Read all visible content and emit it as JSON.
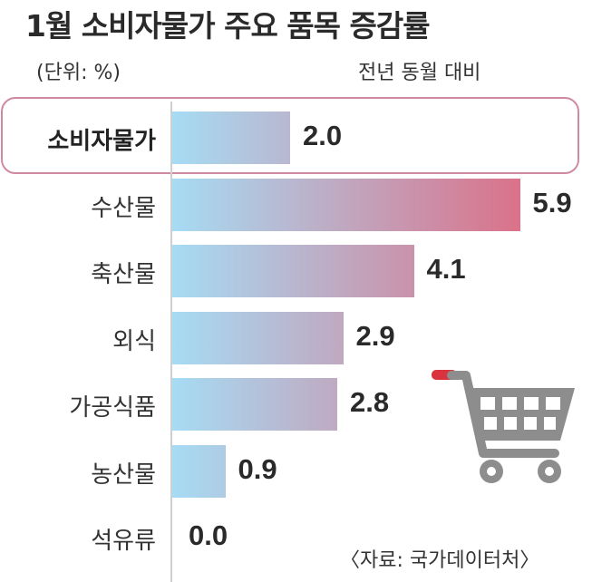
{
  "chart_data": {
    "type": "bar",
    "orientation": "horizontal",
    "title": "1월 소비자물가 주요 품목 증감률",
    "unit_label": "(단위: %)",
    "basis_label": "전년 동월 대비",
    "categories": [
      "소비자물가",
      "수산물",
      "축산물",
      "외식",
      "가공식품",
      "농산물",
      "석유류"
    ],
    "values": [
      2.0,
      5.9,
      4.1,
      2.9,
      2.8,
      0.9,
      0.0
    ],
    "value_labels": [
      "2.0",
      "5.9",
      "4.1",
      "2.9",
      "2.8",
      "0.9",
      "0.0"
    ],
    "highlighted_category": "소비자물가",
    "xlim": [
      0,
      6
    ],
    "grid": false,
    "source": "〈자료: 국가데이터처〉"
  },
  "colors": {
    "bar_start": "#a6dcf4",
    "bar_end": "#db7088",
    "highlight_border": "#cf8aa0",
    "cart_body": "#8d8d8d",
    "cart_handle": "#d9343e"
  },
  "icons": {
    "decoration": "shopping-cart-icon"
  }
}
